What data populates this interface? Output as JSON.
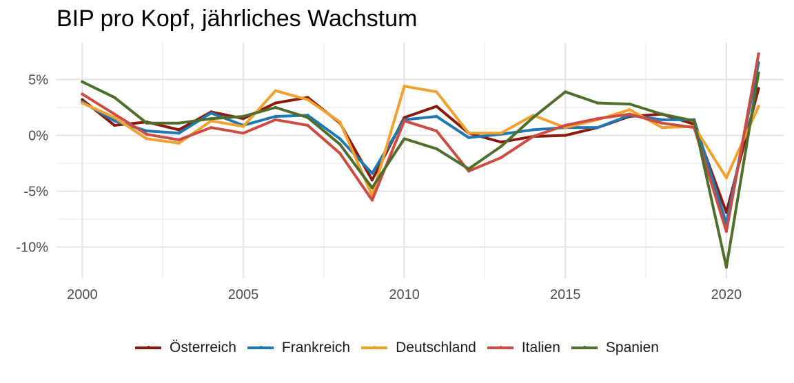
{
  "chart_data": {
    "type": "line",
    "title": "BIP pro Kopf, jährliches Wachstum",
    "xlabel": "",
    "ylabel": "",
    "x": [
      2000,
      2001,
      2002,
      2003,
      2004,
      2005,
      2006,
      2007,
      2008,
      2009,
      2010,
      2011,
      2012,
      2013,
      2014,
      2015,
      2016,
      2017,
      2018,
      2019,
      2020,
      2021
    ],
    "xlim": [
      1999.2,
      2021.8
    ],
    "ylim": [
      -12.8,
      8.3
    ],
    "x_ticks": [
      {
        "value": 2000,
        "label": "2000"
      },
      {
        "value": 2005,
        "label": "2005"
      },
      {
        "value": 2010,
        "label": "2010"
      },
      {
        "value": 2015,
        "label": "2015"
      },
      {
        "value": 2020,
        "label": "2020"
      }
    ],
    "y_ticks": [
      {
        "value": 5,
        "label": "5%"
      },
      {
        "value": 0,
        "label": "0%"
      },
      {
        "value": -5,
        "label": "-5%"
      },
      {
        "value": -10,
        "label": "-10%"
      }
    ],
    "grid": true,
    "legend_position": "bottom",
    "series": [
      {
        "name": "Österreich",
        "color": "#8b1a0e",
        "values": [
          3.2,
          0.9,
          1.2,
          0.5,
          2.1,
          1.5,
          2.9,
          3.4,
          1.1,
          -4.0,
          1.6,
          2.6,
          0.2,
          -0.6,
          -0.1,
          0.0,
          0.7,
          1.7,
          1.9,
          1.0,
          -6.9,
          4.2
        ]
      },
      {
        "name": "Frankreich",
        "color": "#1f78b4",
        "values": [
          3.0,
          1.3,
          0.4,
          0.2,
          2.0,
          0.9,
          1.7,
          1.8,
          -0.3,
          -3.4,
          1.4,
          1.7,
          -0.2,
          0.1,
          0.5,
          0.7,
          0.7,
          1.8,
          1.4,
          1.4,
          -7.9,
          6.5
        ]
      },
      {
        "name": "Deutschland",
        "color": "#f0a12e",
        "values": [
          2.9,
          1.6,
          -0.3,
          -0.7,
          1.3,
          0.8,
          4.0,
          3.2,
          1.2,
          -5.4,
          4.4,
          3.9,
          0.2,
          0.2,
          1.8,
          0.7,
          1.4,
          2.3,
          0.7,
          0.8,
          -3.8,
          2.6
        ]
      },
      {
        "name": "Italien",
        "color": "#cc4c43",
        "values": [
          3.7,
          1.9,
          0.1,
          -0.4,
          0.7,
          0.2,
          1.4,
          0.9,
          -1.6,
          -5.8,
          1.3,
          0.4,
          -3.2,
          -2.0,
          -0.1,
          0.9,
          1.5,
          1.9,
          1.1,
          0.7,
          -8.6,
          7.3
        ]
      },
      {
        "name": "Spanien",
        "color": "#4e6e29",
        "values": [
          4.8,
          3.4,
          1.1,
          1.1,
          1.5,
          1.7,
          2.5,
          1.6,
          -0.8,
          -4.7,
          -0.3,
          -1.2,
          -3.0,
          -1.0,
          1.6,
          3.9,
          2.9,
          2.8,
          1.9,
          1.3,
          -11.8,
          5.6
        ]
      }
    ]
  }
}
